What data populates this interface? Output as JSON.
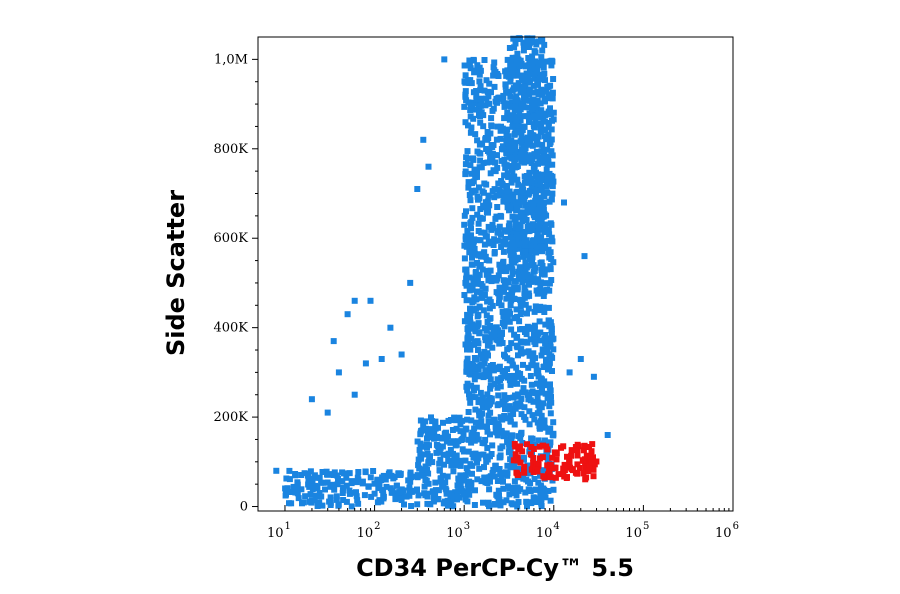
{
  "chart_data": {
    "type": "scatter",
    "title": "",
    "xlabel": "CD34 PerCP-Cy™ 5.5",
    "ylabel": "Side Scatter",
    "x_scale": "log",
    "x_range": [
      5,
      1000000
    ],
    "ylim": [
      -10000,
      1050000
    ],
    "grid": false,
    "legend": "none",
    "x_ticks": [
      {
        "value": 10,
        "base": "10",
        "exp": "1"
      },
      {
        "value": 100,
        "base": "10",
        "exp": "2"
      },
      {
        "value": 1000,
        "base": "10",
        "exp": "3"
      },
      {
        "value": 10000,
        "base": "10",
        "exp": "4"
      },
      {
        "value": 100000,
        "base": "10",
        "exp": "5"
      },
      {
        "value": 1000000,
        "base": "10",
        "exp": "6"
      }
    ],
    "y_ticks": [
      {
        "value": 0,
        "label": "0"
      },
      {
        "value": 200000,
        "label": "200K"
      },
      {
        "value": 400000,
        "label": "400K"
      },
      {
        "value": 600000,
        "label": "600K"
      },
      {
        "value": 800000,
        "label": "800K"
      },
      {
        "value": 1000000,
        "label": "1,0M"
      }
    ],
    "colors": {
      "population": "#1a84e0",
      "cd34_positive": "#ee1111",
      "frame": "#000000"
    },
    "series": [
      {
        "color": "#1a84e0",
        "regions": [
          {
            "x": [
              3000,
              8000
            ],
            "y": [
              500000,
              1050000
            ]
          },
          {
            "x": [
              1000,
              10000
            ],
            "y": [
              200000,
              1000000
            ]
          },
          {
            "x": [
              300,
              10000
            ],
            "y": [
              0,
              200000
            ]
          },
          {
            "x": [
              10,
              300
            ],
            "y": [
              0,
              80000
            ]
          }
        ],
        "outliers": [
          [
            20,
            240000
          ],
          [
            35,
            370000
          ],
          [
            50,
            430000
          ],
          [
            60,
            460000
          ],
          [
            90,
            460000
          ],
          [
            150,
            400000
          ],
          [
            200,
            340000
          ],
          [
            120,
            330000
          ],
          [
            80,
            320000
          ],
          [
            40,
            300000
          ],
          [
            30,
            210000
          ],
          [
            60,
            250000
          ],
          [
            250,
            500000
          ],
          [
            400,
            760000
          ],
          [
            350,
            820000
          ],
          [
            300,
            710000
          ],
          [
            600,
            1000000
          ],
          [
            20000,
            330000
          ],
          [
            28000,
            290000
          ],
          [
            40000,
            160000
          ],
          [
            22000,
            560000
          ],
          [
            13000,
            680000
          ],
          [
            15000,
            300000
          ],
          [
            8,
            80000
          ],
          [
            9000,
            320000
          ]
        ]
      },
      {
        "color": "#ee1111",
        "regions": [
          {
            "x": [
              3500,
              30000
            ],
            "y": [
              60000,
              140000
            ]
          }
        ]
      }
    ]
  }
}
